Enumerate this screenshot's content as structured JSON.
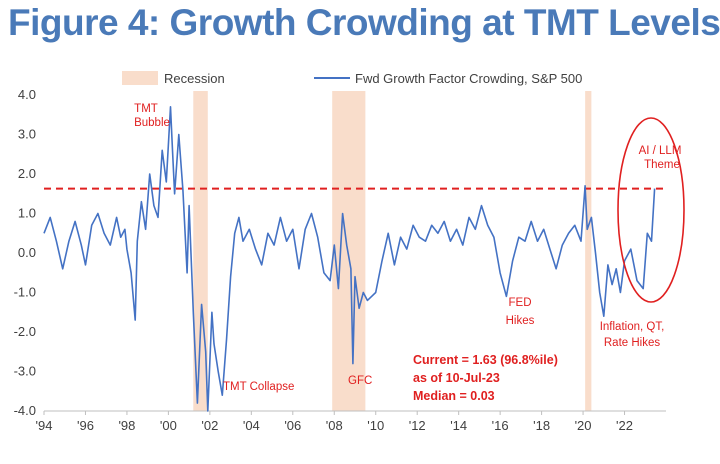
{
  "chart_data": {
    "type": "line",
    "title": "Figure 4: Growth Crowding at TMT Levels",
    "legend": {
      "position": "top",
      "recession_label": "Recession",
      "series_label": "Fwd Growth Factor Crowding, S&P 500"
    },
    "colors": {
      "title": "#4a7ab8",
      "line": "#4472c4",
      "recession": "#f9ddcb",
      "annotation": "#e02020",
      "tick": "#404040"
    },
    "xlim": [
      1994,
      2024
    ],
    "ylim": [
      -4.0,
      4.0
    ],
    "yticks": [
      "4.0",
      "3.0",
      "2.0",
      "1.0",
      "0.0",
      "-1.0",
      "-2.0",
      "-3.0",
      "-4.0"
    ],
    "ytick_values": [
      4,
      3,
      2,
      1,
      0,
      -1,
      -2,
      -3,
      -4
    ],
    "xticks": [
      "'94",
      "'96",
      "'98",
      "'00",
      "'02",
      "'04",
      "'06",
      "'08",
      "'10",
      "'12",
      "'14",
      "'16",
      "'18",
      "'20",
      "'22"
    ],
    "xtick_values": [
      1994,
      1996,
      1998,
      2000,
      2002,
      2004,
      2006,
      2008,
      2010,
      2012,
      2014,
      2016,
      2018,
      2020,
      2022
    ],
    "recessions": [
      [
        2001.2,
        2001.9
      ],
      [
        2007.9,
        2009.5
      ],
      [
        2020.1,
        2020.4
      ]
    ],
    "reference_line": {
      "value": 1.63,
      "style": "dashed"
    },
    "series": [
      {
        "name": "Fwd Growth Factor Crowding, S&P 500",
        "x": [
          1994.0,
          1994.3,
          1994.6,
          1994.9,
          1995.2,
          1995.5,
          1995.8,
          1996.0,
          1996.3,
          1996.6,
          1996.9,
          1997.2,
          1997.5,
          1997.7,
          1997.9,
          1998.0,
          1998.2,
          1998.4,
          1998.5,
          1998.7,
          1998.9,
          1999.1,
          1999.3,
          1999.5,
          1999.7,
          1999.9,
          2000.1,
          2000.2,
          2000.3,
          2000.5,
          2000.7,
          2000.9,
          2001.0,
          2001.2,
          2001.4,
          2001.6,
          2001.8,
          2001.9,
          2002.1,
          2002.2,
          2002.4,
          2002.6,
          2002.8,
          2003.0,
          2003.2,
          2003.4,
          2003.6,
          2003.9,
          2004.2,
          2004.5,
          2004.8,
          2005.1,
          2005.4,
          2005.7,
          2006.0,
          2006.3,
          2006.6,
          2006.9,
          2007.2,
          2007.5,
          2007.8,
          2008.0,
          2008.2,
          2008.4,
          2008.6,
          2008.8,
          2008.9,
          2009.0,
          2009.2,
          2009.4,
          2009.6,
          2009.8,
          2010.0,
          2010.3,
          2010.6,
          2010.9,
          2011.2,
          2011.5,
          2011.8,
          2012.1,
          2012.4,
          2012.7,
          2013.0,
          2013.3,
          2013.6,
          2013.9,
          2014.2,
          2014.5,
          2014.8,
          2015.1,
          2015.4,
          2015.7,
          2016.0,
          2016.3,
          2016.6,
          2016.9,
          2017.2,
          2017.5,
          2017.8,
          2018.1,
          2018.4,
          2018.7,
          2019.0,
          2019.3,
          2019.6,
          2019.9,
          2020.1,
          2020.2,
          2020.4,
          2020.6,
          2020.8,
          2021.0,
          2021.2,
          2021.4,
          2021.6,
          2021.8,
          2022.0,
          2022.3,
          2022.6,
          2022.9,
          2023.1,
          2023.3,
          2023.45
        ],
        "values": [
          0.5,
          0.9,
          0.3,
          -0.4,
          0.3,
          0.8,
          0.2,
          -0.3,
          0.7,
          1.0,
          0.5,
          0.2,
          0.9,
          0.4,
          0.6,
          0.1,
          -0.5,
          -1.7,
          0.3,
          1.3,
          0.6,
          2.0,
          1.2,
          0.9,
          2.6,
          1.8,
          3.7,
          2.6,
          1.5,
          3.0,
          1.6,
          -0.5,
          1.2,
          -1.5,
          -3.8,
          -1.3,
          -2.5,
          -4.0,
          -1.5,
          -2.3,
          -3.0,
          -3.6,
          -2.2,
          -0.6,
          0.5,
          0.9,
          0.3,
          0.6,
          0.1,
          -0.3,
          0.5,
          0.2,
          0.9,
          0.3,
          0.6,
          -0.4,
          0.6,
          1.0,
          0.4,
          -0.5,
          -0.7,
          0.2,
          -0.9,
          1.0,
          0.2,
          -0.4,
          -2.8,
          -0.6,
          -1.4,
          -1.0,
          -1.2,
          -1.1,
          -1.0,
          -0.2,
          0.5,
          -0.3,
          0.4,
          0.1,
          0.7,
          0.4,
          0.3,
          0.7,
          0.5,
          0.8,
          0.3,
          0.6,
          0.2,
          0.9,
          0.6,
          1.2,
          0.7,
          0.4,
          -0.5,
          -1.1,
          -0.2,
          0.4,
          0.3,
          0.8,
          0.3,
          0.6,
          0.1,
          -0.4,
          0.2,
          0.5,
          0.7,
          0.3,
          1.7,
          0.6,
          0.9,
          0.0,
          -1.0,
          -1.6,
          -0.3,
          -0.8,
          -0.4,
          -1.0,
          -0.2,
          0.1,
          -0.7,
          -0.9,
          0.5,
          0.3,
          1.63
        ]
      }
    ],
    "annotations": {
      "tmt_bubble": [
        "TMT",
        "Bubble"
      ],
      "tmt_collapse": "TMT Collapse",
      "gfc": "GFC",
      "fed_hikes": [
        "FED",
        "Hikes"
      ],
      "inflation": [
        "Inflation, QT,",
        "Rate Hikes"
      ],
      "ai_llm": [
        "AI / LLM",
        "Theme"
      ]
    },
    "stats": [
      "Current = 1.63 (96.8%ile)",
      "as of 10-Jul-23",
      "Median = 0.03"
    ]
  }
}
